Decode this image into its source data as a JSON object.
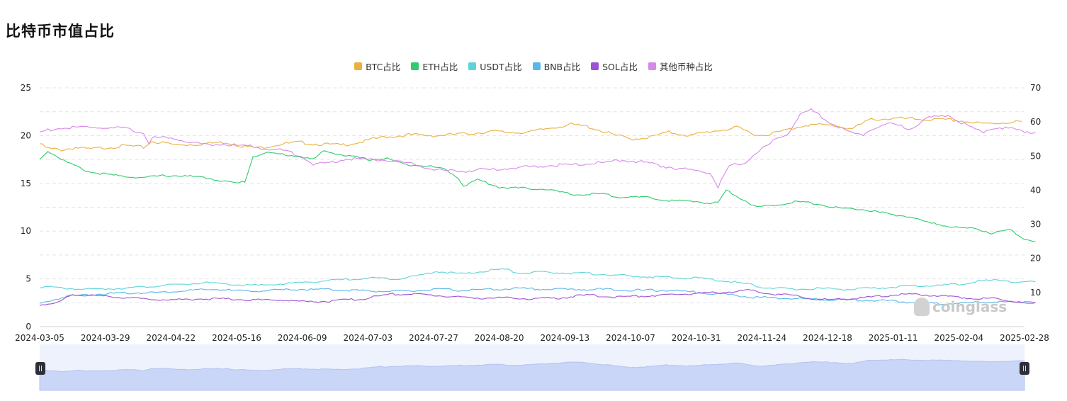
{
  "page": {
    "title": "比特币市值占比"
  },
  "watermark": {
    "text": "coinglass"
  },
  "chart_data": {
    "type": "line",
    "legend_position": "top-center",
    "grid": true,
    "x_ticks": [
      "2024-03-05",
      "2024-03-29",
      "2024-04-22",
      "2024-05-16",
      "2024-06-09",
      "2024-07-03",
      "2024-07-27",
      "2024-08-20",
      "2024-09-13",
      "2024-10-07",
      "2024-10-31",
      "2024-11-24",
      "2024-12-18",
      "2025-01-11",
      "2025-02-04",
      "2025-02-28"
    ],
    "y_left": {
      "min": 0,
      "max": 25,
      "ticks": [
        0,
        5,
        10,
        15,
        20,
        25
      ]
    },
    "y_right": {
      "min": 0,
      "max": 70,
      "ticks": [
        10,
        20,
        30,
        40,
        50,
        60,
        70
      ]
    },
    "series": [
      {
        "name": "BTC占比",
        "color": "#eab13f",
        "axis": "right",
        "points": [
          [
            0,
            53.6
          ],
          [
            3,
            52.2
          ],
          [
            8,
            51.8
          ],
          [
            13,
            52.5
          ],
          [
            18,
            52.0
          ],
          [
            25,
            52.6
          ],
          [
            32,
            53.0
          ],
          [
            38,
            52.5
          ],
          [
            41,
            54.3
          ],
          [
            50,
            53.3
          ],
          [
            58,
            53.5
          ],
          [
            68,
            54.1
          ],
          [
            75,
            52.8
          ],
          [
            80,
            52.4
          ],
          [
            88,
            53.5
          ],
          [
            95,
            54.0
          ],
          [
            100,
            53.6
          ],
          [
            110,
            53.2
          ],
          [
            118,
            54.2
          ],
          [
            125,
            55.5
          ],
          [
            135,
            56.2
          ],
          [
            145,
            56.0
          ],
          [
            155,
            56.5
          ],
          [
            165,
            57.2
          ],
          [
            173,
            56.9
          ],
          [
            180,
            57.1
          ],
          [
            188,
            58.5
          ],
          [
            194,
            59.2
          ],
          [
            200,
            58.7
          ],
          [
            203,
            58.0
          ],
          [
            210,
            56.2
          ],
          [
            216,
            55.0
          ],
          [
            223,
            55.5
          ],
          [
            230,
            57.0
          ],
          [
            238,
            56.0
          ],
          [
            245,
            57.2
          ],
          [
            255,
            58.3
          ],
          [
            263,
            56.0
          ],
          [
            270,
            57.0
          ],
          [
            280,
            59.2
          ],
          [
            290,
            59.0
          ],
          [
            297,
            58.0
          ],
          [
            304,
            60.8
          ],
          [
            315,
            61.0
          ],
          [
            325,
            60.7
          ],
          [
            335,
            60.5
          ],
          [
            345,
            59.4
          ],
          [
            359,
            60.2
          ]
        ]
      },
      {
        "name": "ETH占比",
        "color": "#2fcb6c",
        "axis": "left",
        "points": [
          [
            0,
            17.5
          ],
          [
            3,
            18.4
          ],
          [
            10,
            17.2
          ],
          [
            18,
            16.2
          ],
          [
            28,
            15.8
          ],
          [
            38,
            15.6
          ],
          [
            45,
            15.8
          ],
          [
            52,
            15.8
          ],
          [
            60,
            15.6
          ],
          [
            66,
            15.3
          ],
          [
            72,
            15.0
          ],
          [
            75,
            15.2
          ],
          [
            78,
            17.8
          ],
          [
            82,
            18.2
          ],
          [
            90,
            18.0
          ],
          [
            95,
            17.8
          ],
          [
            100,
            17.5
          ],
          [
            104,
            18.4
          ],
          [
            112,
            17.9
          ],
          [
            120,
            17.5
          ],
          [
            127,
            17.6
          ],
          [
            133,
            17.0
          ],
          [
            140,
            16.9
          ],
          [
            148,
            16.5
          ],
          [
            153,
            15.6
          ],
          [
            155,
            14.7
          ],
          [
            160,
            15.4
          ],
          [
            168,
            14.6
          ],
          [
            175,
            14.5
          ],
          [
            185,
            14.4
          ],
          [
            195,
            13.8
          ],
          [
            205,
            13.9
          ],
          [
            212,
            13.6
          ],
          [
            222,
            13.5
          ],
          [
            230,
            13.2
          ],
          [
            240,
            13.1
          ],
          [
            245,
            12.9
          ],
          [
            248,
            13.0
          ],
          [
            251,
            14.3
          ],
          [
            256,
            13.5
          ],
          [
            262,
            12.5
          ],
          [
            270,
            12.8
          ],
          [
            277,
            13.1
          ],
          [
            285,
            12.8
          ],
          [
            292,
            12.4
          ],
          [
            300,
            12.3
          ],
          [
            310,
            11.8
          ],
          [
            318,
            11.5
          ],
          [
            326,
            10.8
          ],
          [
            335,
            10.4
          ],
          [
            343,
            10.2
          ],
          [
            348,
            9.8
          ],
          [
            355,
            10.1
          ],
          [
            360,
            9.2
          ],
          [
            364,
            8.9
          ]
        ]
      },
      {
        "name": "USDT占比",
        "color": "#5dd4d7",
        "axis": "left",
        "points": [
          [
            0,
            4.2
          ],
          [
            10,
            4.0
          ],
          [
            18,
            3.9
          ],
          [
            28,
            4.0
          ],
          [
            36,
            4.1
          ],
          [
            44,
            4.3
          ],
          [
            52,
            4.4
          ],
          [
            60,
            4.6
          ],
          [
            70,
            4.4
          ],
          [
            80,
            4.3
          ],
          [
            90,
            4.5
          ],
          [
            100,
            4.7
          ],
          [
            110,
            4.9
          ],
          [
            120,
            5.1
          ],
          [
            130,
            5.0
          ],
          [
            140,
            5.4
          ],
          [
            145,
            5.8
          ],
          [
            155,
            5.5
          ],
          [
            165,
            5.9
          ],
          [
            170,
            6.0
          ],
          [
            175,
            5.6
          ],
          [
            185,
            5.7
          ],
          [
            195,
            5.6
          ],
          [
            205,
            5.5
          ],
          [
            215,
            5.3
          ],
          [
            225,
            5.2
          ],
          [
            232,
            5.1
          ],
          [
            240,
            5.1
          ],
          [
            250,
            4.8
          ],
          [
            258,
            4.5
          ],
          [
            265,
            4.1
          ],
          [
            275,
            3.9
          ],
          [
            285,
            4.0
          ],
          [
            295,
            3.9
          ],
          [
            305,
            4.0
          ],
          [
            315,
            4.2
          ],
          [
            325,
            4.3
          ],
          [
            335,
            4.4
          ],
          [
            345,
            4.8
          ],
          [
            352,
            4.9
          ],
          [
            358,
            4.6
          ],
          [
            364,
            4.7
          ]
        ]
      },
      {
        "name": "BNB占比",
        "color": "#58b8e8",
        "axis": "left",
        "points": [
          [
            0,
            2.4
          ],
          [
            10,
            3.2
          ],
          [
            20,
            3.4
          ],
          [
            30,
            3.5
          ],
          [
            45,
            3.6
          ],
          [
            55,
            3.8
          ],
          [
            65,
            3.9
          ],
          [
            75,
            3.7
          ],
          [
            85,
            3.8
          ],
          [
            95,
            3.9
          ],
          [
            105,
            3.9
          ],
          [
            115,
            3.8
          ],
          [
            125,
            3.7
          ],
          [
            135,
            3.7
          ],
          [
            145,
            3.9
          ],
          [
            155,
            3.8
          ],
          [
            165,
            3.9
          ],
          [
            175,
            4.0
          ],
          [
            190,
            3.9
          ],
          [
            205,
            3.9
          ],
          [
            220,
            3.8
          ],
          [
            230,
            3.8
          ],
          [
            240,
            3.6
          ],
          [
            250,
            3.4
          ],
          [
            260,
            3.1
          ],
          [
            270,
            3.0
          ],
          [
            280,
            2.9
          ],
          [
            290,
            2.8
          ],
          [
            300,
            2.8
          ],
          [
            310,
            2.7
          ],
          [
            320,
            2.5
          ],
          [
            330,
            2.4
          ],
          [
            340,
            2.5
          ],
          [
            350,
            2.6
          ],
          [
            364,
            2.5
          ]
        ]
      },
      {
        "name": "SOL占比",
        "color": "#9e52d4",
        "axis": "left",
        "points": [
          [
            0,
            2.3
          ],
          [
            6,
            2.4
          ],
          [
            12,
            3.4
          ],
          [
            20,
            3.2
          ],
          [
            28,
            3.1
          ],
          [
            38,
            2.9
          ],
          [
            48,
            2.8
          ],
          [
            58,
            2.9
          ],
          [
            68,
            2.9
          ],
          [
            78,
            2.8
          ],
          [
            88,
            2.8
          ],
          [
            98,
            2.6
          ],
          [
            108,
            2.7
          ],
          [
            118,
            2.9
          ],
          [
            128,
            3.4
          ],
          [
            138,
            3.4
          ],
          [
            148,
            3.2
          ],
          [
            158,
            3.0
          ],
          [
            170,
            3.0
          ],
          [
            180,
            2.9
          ],
          [
            190,
            3.0
          ],
          [
            200,
            3.3
          ],
          [
            210,
            3.1
          ],
          [
            220,
            3.2
          ],
          [
            230,
            3.3
          ],
          [
            240,
            3.5
          ],
          [
            250,
            3.6
          ],
          [
            260,
            3.8
          ],
          [
            268,
            3.4
          ],
          [
            275,
            3.3
          ],
          [
            285,
            2.8
          ],
          [
            295,
            2.9
          ],
          [
            305,
            3.1
          ],
          [
            312,
            3.3
          ],
          [
            320,
            3.4
          ],
          [
            330,
            3.2
          ],
          [
            340,
            3.0
          ],
          [
            350,
            2.9
          ],
          [
            358,
            2.6
          ],
          [
            364,
            2.5
          ]
        ]
      },
      {
        "name": "其他币种占比",
        "color": "#d58ae8",
        "axis": "right",
        "points": [
          [
            0,
            57.0
          ],
          [
            5,
            58.0
          ],
          [
            10,
            58.2
          ],
          [
            18,
            58.5
          ],
          [
            25,
            58.2
          ],
          [
            32,
            58.0
          ],
          [
            38,
            56.6
          ],
          [
            40,
            54.0
          ],
          [
            42,
            55.5
          ],
          [
            50,
            55.0
          ],
          [
            58,
            53.6
          ],
          [
            68,
            53.3
          ],
          [
            75,
            53.0
          ],
          [
            82,
            52.3
          ],
          [
            90,
            51.5
          ],
          [
            96,
            50.0
          ],
          [
            100,
            47.5
          ],
          [
            106,
            48.0
          ],
          [
            112,
            49.3
          ],
          [
            120,
            49.0
          ],
          [
            128,
            48.8
          ],
          [
            134,
            48.0
          ],
          [
            140,
            47.0
          ],
          [
            148,
            45.4
          ],
          [
            158,
            45.8
          ],
          [
            168,
            46.2
          ],
          [
            178,
            46.8
          ],
          [
            186,
            47.2
          ],
          [
            196,
            47.6
          ],
          [
            206,
            48.0
          ],
          [
            214,
            48.8
          ],
          [
            222,
            48.0
          ],
          [
            230,
            46.8
          ],
          [
            238,
            45.8
          ],
          [
            245,
            45.2
          ],
          [
            248,
            40.8
          ],
          [
            252,
            47.0
          ],
          [
            258,
            48.0
          ],
          [
            262,
            51.0
          ],
          [
            268,
            54.2
          ],
          [
            274,
            57.0
          ],
          [
            278,
            62.5
          ],
          [
            282,
            63.4
          ],
          [
            288,
            60.5
          ],
          [
            294,
            57.5
          ],
          [
            300,
            56.0
          ],
          [
            306,
            58.5
          ],
          [
            312,
            59.5
          ],
          [
            318,
            58.0
          ],
          [
            324,
            61.0
          ],
          [
            332,
            62.0
          ],
          [
            338,
            59.5
          ],
          [
            344,
            57.0
          ],
          [
            350,
            58.5
          ],
          [
            355,
            58.0
          ],
          [
            358,
            57.5
          ],
          [
            364,
            57.0
          ]
        ]
      }
    ]
  }
}
